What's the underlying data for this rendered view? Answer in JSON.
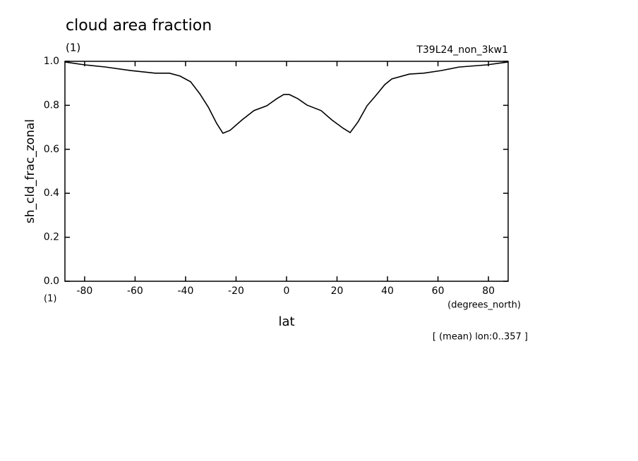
{
  "chart_data": {
    "type": "line",
    "title": "cloud area fraction",
    "subtitle": "(1)",
    "run_label": "T39L24_non_3kw1",
    "y_label": "sh_cld_frac_zonal",
    "y_unit": "(1)",
    "x_label": "lat",
    "x_unit": "(degrees_north)",
    "annotation": "[ (mean) lon:0..357 ]",
    "x": [
      -87.8,
      -80,
      -71.6,
      -61.8,
      -52,
      -46.4,
      -42.2,
      -38,
      -34.4,
      -31,
      -27.7,
      -25.2,
      -22.4,
      -17.6,
      -12.9,
      -7.8,
      -3.9,
      -1.1,
      1.1,
      4.5,
      8.1,
      13.7,
      17.9,
      22.4,
      25.2,
      28.3,
      31.9,
      35.5,
      38.9,
      41.7,
      48.7,
      54.3,
      61.3,
      68.3,
      79.4,
      87.8
    ],
    "series": [
      {
        "color": "#000000",
        "values": [
          0.997,
          0.984,
          0.974,
          0.958,
          0.946,
          0.946,
          0.933,
          0.907,
          0.853,
          0.792,
          0.718,
          0.673,
          0.686,
          0.734,
          0.776,
          0.798,
          0.83,
          0.849,
          0.849,
          0.83,
          0.801,
          0.776,
          0.734,
          0.696,
          0.676,
          0.724,
          0.798,
          0.846,
          0.894,
          0.92,
          0.942,
          0.946,
          0.958,
          0.974,
          0.984,
          0.997
        ]
      }
    ],
    "xlim": [
      -87.8,
      87.8
    ],
    "xticks": [
      -80,
      -60,
      -40,
      -20,
      0,
      20,
      40,
      60,
      80
    ],
    "ylim": [
      0,
      1
    ],
    "yticks": [
      {
        "value": 0,
        "label": "0.0"
      },
      0.2,
      0.4,
      0.6,
      0.8,
      {
        "value": 1,
        "label": "1.0"
      }
    ]
  }
}
